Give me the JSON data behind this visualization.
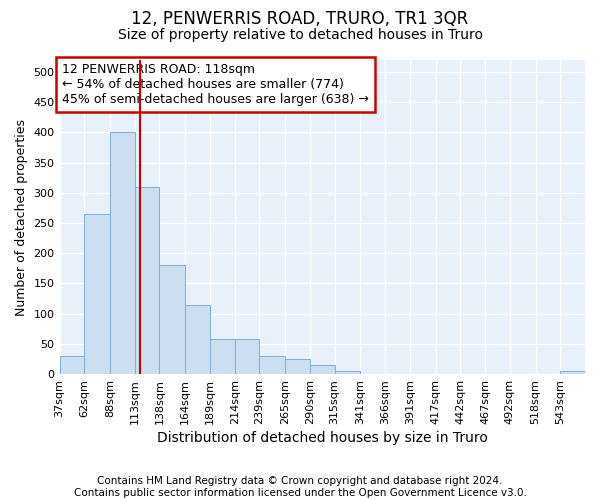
{
  "title": "12, PENWERRIS ROAD, TRURO, TR1 3QR",
  "subtitle": "Size of property relative to detached houses in Truro",
  "xlabel": "Distribution of detached houses by size in Truro",
  "ylabel": "Number of detached properties",
  "bar_color": "#ccdff0",
  "bar_edge_color": "#7aafd4",
  "background_color": "#e8f0fa",
  "grid_color": "#ffffff",
  "bin_edges": [
    37,
    62,
    88,
    113,
    138,
    164,
    189,
    214,
    239,
    265,
    290,
    315,
    341,
    366,
    391,
    417,
    442,
    467,
    492,
    518,
    543,
    568
  ],
  "bar_heights": [
    30,
    265,
    400,
    310,
    180,
    115,
    58,
    58,
    30,
    25,
    15,
    5,
    0,
    0,
    0,
    0,
    0,
    0,
    0,
    0,
    5
  ],
  "red_line_x": 118,
  "annotation_text": "12 PENWERRIS ROAD: 118sqm\n← 54% of detached houses are smaller (774)\n45% of semi-detached houses are larger (638) →",
  "annotation_box_color": "#ffffff",
  "annotation_box_edge_color": "#cc0000",
  "ylim": [
    0,
    520
  ],
  "yticks": [
    0,
    50,
    100,
    150,
    200,
    250,
    300,
    350,
    400,
    450,
    500
  ],
  "tick_labels": [
    "37sqm",
    "62sqm",
    "88sqm",
    "113sqm",
    "138sqm",
    "164sqm",
    "189sqm",
    "214sqm",
    "239sqm",
    "265sqm",
    "290sqm",
    "315sqm",
    "341sqm",
    "366sqm",
    "391sqm",
    "417sqm",
    "442sqm",
    "467sqm",
    "492sqm",
    "518sqm",
    "543sqm"
  ],
  "footnote": "Contains HM Land Registry data © Crown copyright and database right 2024.\nContains public sector information licensed under the Open Government Licence v3.0.",
  "title_fontsize": 12,
  "subtitle_fontsize": 10,
  "xlabel_fontsize": 10,
  "ylabel_fontsize": 9,
  "tick_fontsize": 8,
  "annotation_fontsize": 9,
  "footnote_fontsize": 7.5
}
